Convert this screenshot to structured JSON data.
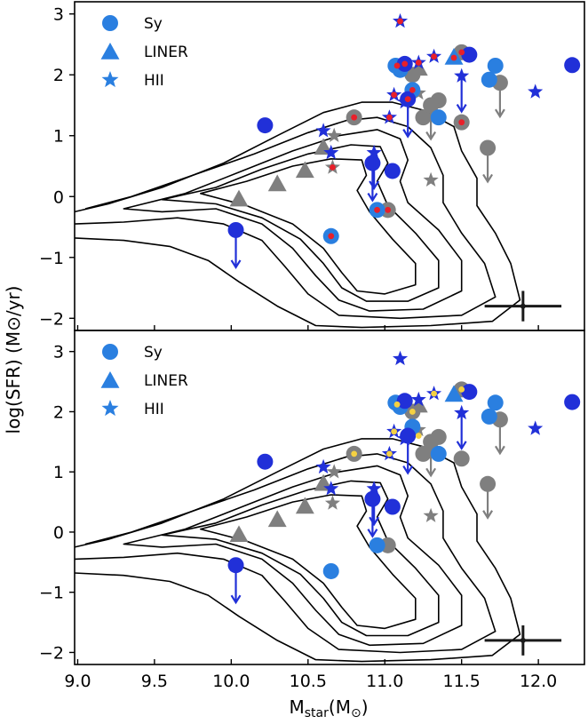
{
  "colors": {
    "sy": "#2a7fe0",
    "hii": "#2a7fe0",
    "liner": "#2a7fe0",
    "dark_blue": "#2130d8",
    "grey": "#7f7f7f",
    "red_dot": "#e8202a",
    "yellow_dot": "#f5d142",
    "contour": "#000000"
  },
  "chart_data": {
    "type": "scatter",
    "xlabel_main": "M",
    "xlabel_sub": "star",
    "xlabel_unit": "(M",
    "xlabel_unit_sub": "⊙",
    "xlabel_close": ")",
    "ylabel": "log(SFR)  (M⊙/yr)",
    "xlim": [
      8.98,
      12.3
    ],
    "ylim_top": [
      -2.2,
      3.2
    ],
    "ylim_bottom": [
      -2.2,
      3.35
    ],
    "x_ticks": [
      "9.0",
      "9.5",
      "10.0",
      "10.5",
      "11.0",
      "11.5",
      "12.0"
    ],
    "y_ticks_top": [
      "−2",
      "−1",
      "0",
      "1",
      "2",
      "3"
    ],
    "y_ticks_bottom": [
      "−2",
      "−1",
      "0",
      "1",
      "2",
      "3"
    ],
    "legend": [
      "Sy",
      "LINER",
      "HII"
    ],
    "legend_placement": "top-left",
    "error_bar": {
      "x": 11.9,
      "y": -1.8,
      "xerr": 0.25,
      "yerr": 0.25
    },
    "grey_points": [
      {
        "m": "circle",
        "x": 11.35,
        "y": 1.58
      },
      {
        "m": "circle",
        "x": 11.25,
        "y": 1.3
      },
      {
        "m": "circle",
        "x": 11.5,
        "y": 1.22
      },
      {
        "m": "circle",
        "x": 11.5,
        "y": 2.37
      },
      {
        "m": "circle",
        "x": 11.02,
        "y": -0.22
      },
      {
        "m": "circle",
        "x": 10.8,
        "y": 1.3
      },
      {
        "m": "circle",
        "x": 11.18,
        "y": 2.0
      },
      {
        "m": "triangle",
        "x": 10.05,
        "y": -0.05
      },
      {
        "m": "triangle",
        "x": 10.3,
        "y": 0.2
      },
      {
        "m": "triangle",
        "x": 10.48,
        "y": 0.42
      },
      {
        "m": "triangle",
        "x": 10.6,
        "y": 0.8
      },
      {
        "m": "triangle",
        "x": 11.22,
        "y": 2.1
      },
      {
        "m": "star",
        "x": 10.67,
        "y": 1.0
      },
      {
        "m": "star",
        "x": 10.66,
        "y": 0.48
      },
      {
        "m": "star",
        "x": 11.3,
        "y": 0.27
      },
      {
        "m": "star",
        "x": 11.22,
        "y": 1.7
      }
    ],
    "grey_uplims": [
      {
        "x": 11.3,
        "y": 1.5
      },
      {
        "x": 11.75,
        "y": 1.87
      },
      {
        "x": 11.67,
        "y": 0.8
      }
    ],
    "blue_points": [
      {
        "x": 10.22,
        "y": 1.17
      },
      {
        "x": 10.65,
        "y": -0.65
      },
      {
        "x": 10.95,
        "y": -0.22
      },
      {
        "x": 11.05,
        "y": 0.42
      },
      {
        "x": 11.07,
        "y": 2.15
      },
      {
        "x": 11.1,
        "y": 2.08
      },
      {
        "x": 11.13,
        "y": 2.18
      },
      {
        "x": 11.18,
        "y": 1.75
      },
      {
        "x": 11.35,
        "y": 1.3
      },
      {
        "x": 11.55,
        "y": 2.33
      },
      {
        "x": 11.68,
        "y": 1.92
      },
      {
        "x": 11.72,
        "y": 2.15
      },
      {
        "x": 12.22,
        "y": 2.16
      }
    ],
    "blue_uplims": [
      {
        "x": 10.03,
        "y": -0.55
      },
      {
        "x": 10.92,
        "y": 0.55
      },
      {
        "x": 11.15,
        "y": 1.6
      }
    ],
    "blue_triangles": [
      {
        "x": 11.45,
        "y": 2.28
      }
    ],
    "blue_stars": [
      {
        "x": 10.6,
        "y": 1.08
      },
      {
        "x": 10.65,
        "y": 0.72
      },
      {
        "x": 10.93,
        "y": 0.72
      },
      {
        "x": 11.03,
        "y": 1.3
      },
      {
        "x": 11.06,
        "y": 1.67
      },
      {
        "x": 11.1,
        "y": 2.88
      },
      {
        "x": 11.13,
        "y": 1.55
      },
      {
        "x": 11.22,
        "y": 2.2
      },
      {
        "x": 11.32,
        "y": 2.3
      },
      {
        "x": 11.5,
        "y": 1.98
      },
      {
        "x": 11.98,
        "y": 1.72
      }
    ],
    "blue_star_uplims": [
      {
        "x": 11.5,
        "y": 1.98
      },
      {
        "x": 10.93,
        "y": 0.72
      }
    ],
    "top_red_dots": [
      [
        10.65,
        -0.65
      ],
      [
        10.95,
        -0.22
      ],
      [
        11.02,
        -0.22
      ],
      [
        10.8,
        1.3
      ],
      [
        11.5,
        1.22
      ],
      [
        11.5,
        2.37
      ],
      [
        11.08,
        2.15
      ],
      [
        11.13,
        2.18
      ],
      [
        11.18,
        1.75
      ],
      [
        11.45,
        2.28
      ],
      [
        11.06,
        1.67
      ],
      [
        11.1,
        2.88
      ],
      [
        11.03,
        1.3
      ],
      [
        11.32,
        2.3
      ],
      [
        11.22,
        2.2
      ],
      [
        10.66,
        0.48
      ],
      [
        11.15,
        1.6
      ]
    ],
    "bottom_yellow_dots": [
      [
        10.8,
        1.3
      ],
      [
        11.5,
        2.37
      ],
      [
        11.08,
        2.12
      ],
      [
        11.18,
        2.0
      ],
      [
        11.06,
        1.67
      ],
      [
        11.32,
        2.3
      ],
      [
        11.03,
        1.3
      ],
      [
        11.22,
        1.6
      ]
    ]
  }
}
